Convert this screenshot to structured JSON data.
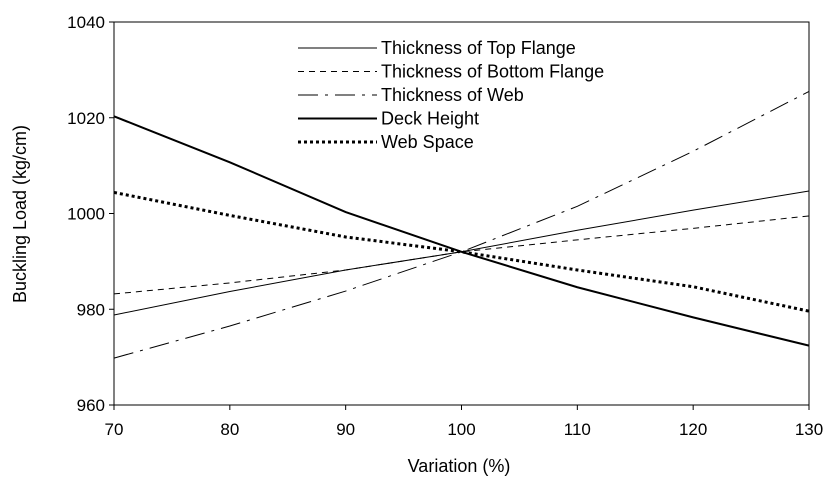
{
  "chart_data": {
    "type": "line",
    "title": "",
    "xlabel": "Variation (%)",
    "ylabel": "Buckling Load (kg/cm)",
    "xlim": [
      70,
      130
    ],
    "ylim": [
      960,
      1040
    ],
    "xticks": [
      70,
      80,
      90,
      100,
      110,
      120,
      130
    ],
    "yticks": [
      960,
      980,
      1000,
      1020,
      1040
    ],
    "grid": false,
    "legend_position": "top-center",
    "x": [
      70,
      80,
      90,
      100,
      110,
      120,
      130
    ],
    "series": [
      {
        "name": "Thickness of Top Flange",
        "style": "thin-solid",
        "color": "#000000",
        "values": [
          978.8,
          983.7,
          988.2,
          992.0,
          996.5,
          1000.7,
          1004.7
        ]
      },
      {
        "name": "Thickness of Bottom Flange",
        "style": "dashed",
        "color": "#000000",
        "values": [
          983.2,
          985.5,
          988.2,
          992.0,
          994.5,
          996.9,
          999.5
        ]
      },
      {
        "name": "Thickness of Web",
        "style": "dash-dot",
        "color": "#000000",
        "values": [
          969.8,
          976.5,
          983.8,
          992.0,
          1001.5,
          1013.0,
          1025.5
        ]
      },
      {
        "name": "Deck Height",
        "style": "thick-solid",
        "color": "#000000",
        "values": [
          1020.3,
          1010.7,
          1000.3,
          992.0,
          984.6,
          978.3,
          972.4
        ]
      },
      {
        "name": "Web Space",
        "style": "dotted",
        "color": "#000000",
        "values": [
          1004.4,
          999.6,
          995.1,
          992.0,
          988.2,
          984.7,
          979.6
        ]
      }
    ]
  }
}
